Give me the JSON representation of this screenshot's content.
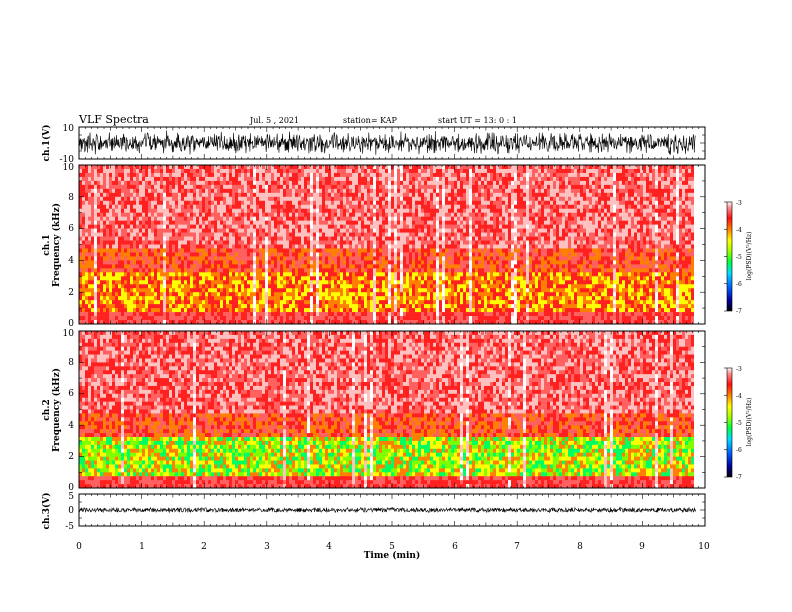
{
  "header": {
    "title": "VLF Spectra",
    "date": "Jul. 5 , 2021",
    "station": "station= KAP",
    "start_time": "start UT =  13: 0 : 1"
  },
  "chart_data": [
    {
      "type": "line",
      "ylabel": "ch.1(V)",
      "ylim": [
        -10,
        10
      ],
      "yticks": [
        "10",
        "-10"
      ],
      "xlim": [
        0,
        10
      ]
    },
    {
      "type": "heatmap",
      "ylabel_line1": "ch.1",
      "ylabel_line2": "Frequency (kHz)",
      "ylim": [
        0,
        10
      ],
      "yticks": [
        "0",
        "2",
        "4",
        "6",
        "8",
        "10"
      ],
      "xlim": [
        0,
        10
      ],
      "colorbar": {
        "label": "log(PSD)(V²/Hz)",
        "ticks": [
          "-3",
          "-4",
          "-5",
          "-6",
          "-7"
        ],
        "range": [
          -7,
          -3
        ]
      }
    },
    {
      "type": "heatmap",
      "ylabel_line1": "ch.2",
      "ylabel_line2": "Frequency (kHz)",
      "ylim": [
        0,
        10
      ],
      "yticks": [
        "0",
        "2",
        "4",
        "6",
        "8",
        "10"
      ],
      "xlim": [
        0,
        10
      ],
      "colorbar": {
        "label": "log(PSD)(V²/Hz)",
        "ticks": [
          "-3",
          "-4",
          "-5",
          "-6",
          "-7"
        ],
        "range": [
          -7,
          -3
        ]
      }
    },
    {
      "type": "line",
      "ylabel": "ch.3(V)",
      "ylim": [
        -5,
        5
      ],
      "yticks": [
        "5",
        "0",
        "-5"
      ],
      "xlim": [
        0,
        10
      ],
      "xlabel": "Time (min)",
      "xticks": [
        "0",
        "1",
        "2",
        "3",
        "4",
        "5",
        "6",
        "7",
        "8",
        "9",
        "10"
      ]
    }
  ],
  "colors": {
    "trace": "#000000",
    "cmap": [
      "#000080",
      "#0000ff",
      "#00c0ff",
      "#00ff60",
      "#80ff00",
      "#ffff00",
      "#ff8000",
      "#ff2020",
      "#ff6060",
      "#ffc0c0",
      "#ffffff"
    ]
  }
}
